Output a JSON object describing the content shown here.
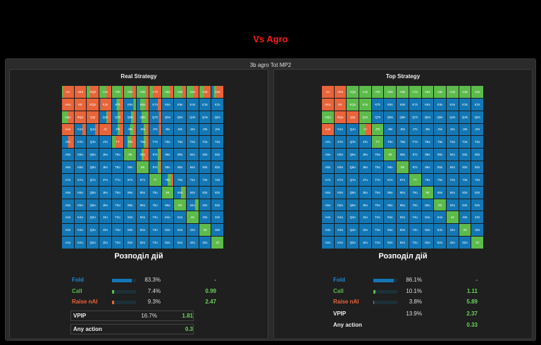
{
  "header_title": "Vs Agro",
  "panel_title": "3b agro Tot MP2",
  "colors": {
    "fold": "#1377b5",
    "call": "#5dbb4c",
    "raise": "#e8643a"
  },
  "ranks": [
    "A",
    "K",
    "Q",
    "J",
    "T",
    "9",
    "8",
    "7",
    "6",
    "5",
    "4",
    "3",
    "2"
  ],
  "real": {
    "title": "Real Strategy",
    "dist_title": "Розподіл дій",
    "actions": [
      {
        "label": "Fold",
        "pct": "83.3%",
        "ev": "-",
        "share": 0.833
      },
      {
        "label": "Call",
        "pct": "7.4%",
        "ev": "0.99",
        "share": 0.074
      },
      {
        "label": "Raise nAI",
        "pct": "9.3%",
        "ev": "2.47",
        "share": 0.093
      }
    ],
    "vpip": {
      "label": "VPIP",
      "pct": "16.7%",
      "ev": "1.81"
    },
    "any": {
      "label": "Any action",
      "ev": "0.3"
    },
    "cells": {
      "AA": [
        0,
        0.1,
        0.9
      ],
      "AKs": [
        0,
        0,
        1
      ],
      "AQs": [
        0,
        0.3,
        0.7
      ],
      "AJs": [
        0,
        0.6,
        0.4
      ],
      "ATs": [
        0,
        0.8,
        0.2
      ],
      "A9s": [
        0,
        0.7,
        0.3
      ],
      "A8s": [
        0,
        0.8,
        0.2
      ],
      "A7s": [
        0,
        0.3,
        0.7
      ],
      "A6s": [
        0,
        0.7,
        0.3
      ],
      "A5s": [
        0,
        0.7,
        0.3
      ],
      "A4s": [
        0,
        0.6,
        0.4
      ],
      "A3s": [
        0,
        0.4,
        0.6
      ],
      "A2s": [
        0.2,
        0.2,
        0.6
      ],
      "AKo": [
        0,
        0,
        1
      ],
      "KK": [
        0,
        0,
        1
      ],
      "KQs": [
        0,
        0,
        1
      ],
      "KJs": [
        0.1,
        0,
        0.9
      ],
      "KTs": [
        0.4,
        0.3,
        0.3
      ],
      "K9s": [
        0.8,
        0.2,
        0
      ],
      "K8s": [
        0.3,
        0.4,
        0.3
      ],
      "K7s": [
        0.7,
        0,
        0.3
      ],
      "AQo": [
        0,
        0.5,
        0.5
      ],
      "KQo": [
        0,
        0,
        1
      ],
      "QQ": [
        0,
        0,
        1
      ],
      "QJs": [
        0.6,
        0.1,
        0.3
      ],
      "QTs": [
        0.5,
        0.2,
        0.3
      ],
      "Q9s": [
        0.6,
        0.2,
        0.2
      ],
      "Q8s": [
        0.4,
        0.5,
        0.1
      ],
      "Q7s": [
        0.8,
        0,
        0.2
      ],
      "AJo": [
        0,
        0,
        1
      ],
      "KJo": [
        0.7,
        0,
        0.3
      ],
      "QJo": [
        0.7,
        0,
        0.3
      ],
      "JJ": [
        0,
        0,
        1
      ],
      "JTs": [
        0.5,
        0.2,
        0.3
      ],
      "J9s": [
        0.5,
        0.3,
        0.2
      ],
      "J8s": [
        0.6,
        0.2,
        0.2
      ],
      "J7s": [
        0.8,
        0,
        0.2
      ],
      "ATo": [
        0.5,
        0,
        0.5
      ],
      "TT": [
        0,
        0.3,
        0.7
      ],
      "T9s": [
        0.3,
        0.3,
        0.4
      ],
      "T8s": [
        0.6,
        0.2,
        0.2
      ],
      "99": [
        0,
        1,
        0
      ],
      "98s": [
        0.4,
        0.2,
        0.4
      ],
      "97s": [
        0.7,
        0.2,
        0.1
      ],
      "88": [
        0,
        1,
        0
      ],
      "87s": [
        0.7,
        0.2,
        0.1
      ],
      "77": [
        0,
        1,
        0
      ],
      "76s": [
        0.5,
        0.3,
        0.2
      ],
      "66": [
        0,
        1,
        0
      ],
      "65s": [
        0.6,
        0.3,
        0.1
      ],
      "55": [
        0,
        1,
        0
      ],
      "54s": [
        0.7,
        0.3,
        0
      ],
      "44": [
        0,
        1,
        0
      ],
      "33": [
        0,
        1,
        0
      ],
      "22": [
        0,
        1,
        0
      ]
    }
  },
  "top": {
    "title": "Top Strategy",
    "dist_title": "Розподіл дій",
    "actions": [
      {
        "label": "Fold",
        "pct": "86.1%",
        "ev": "-",
        "share": 0.861
      },
      {
        "label": "Call",
        "pct": "10.1%",
        "ev": "1.11",
        "share": 0.101
      },
      {
        "label": "Raise nAI",
        "pct": "3.8%",
        "ev": "5.89",
        "share": 0.038
      }
    ],
    "vpip": {
      "label": "VPIP",
      "pct": "13.9%",
      "ev": "2.37"
    },
    "any": {
      "label": "Any action",
      "ev": "0.33"
    },
    "cells": {
      "AA": [
        0,
        0,
        1
      ],
      "AKs": [
        0,
        0,
        1
      ],
      "AQs": [
        0,
        1,
        0
      ],
      "AJs": [
        0,
        1,
        0
      ],
      "ATs": [
        0,
        1,
        0
      ],
      "A9s": [
        0,
        1,
        0
      ],
      "A8s": [
        0,
        1,
        0
      ],
      "A7s": [
        0,
        1,
        0
      ],
      "A6s": [
        0,
        1,
        0
      ],
      "A5s": [
        0,
        1,
        0
      ],
      "A4s": [
        0,
        1,
        0
      ],
      "A3s": [
        0,
        1,
        0
      ],
      "A2s": [
        0,
        1,
        0
      ],
      "AKo": [
        0,
        0,
        1
      ],
      "KK": [
        0,
        0,
        1
      ],
      "KQs": [
        0,
        1,
        0
      ],
      "KJs": [
        0,
        1,
        0
      ],
      "AQo": [
        0,
        1,
        0
      ],
      "KQo": [
        0,
        0,
        1
      ],
      "QQ": [
        0,
        0,
        1
      ],
      "QJs": [
        0,
        1,
        0
      ],
      "AJo": [
        0,
        0,
        1
      ],
      "JJ": [
        0,
        0.5,
        0.5
      ],
      "JTs": [
        0,
        1,
        0
      ],
      "TT": [
        0,
        1,
        0
      ],
      "99": [
        0,
        1,
        0
      ],
      "88": [
        0,
        1,
        0
      ],
      "77": [
        0,
        1,
        0
      ],
      "66": [
        0,
        1,
        0
      ],
      "55": [
        0,
        1,
        0
      ],
      "44": [
        0,
        1,
        0
      ],
      "33": [
        0,
        1,
        0
      ],
      "22": [
        0,
        1,
        0
      ]
    }
  }
}
